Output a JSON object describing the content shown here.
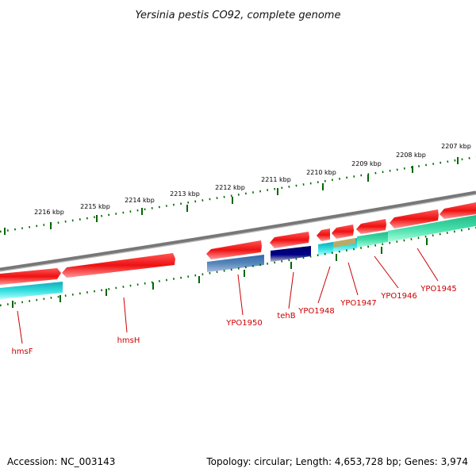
{
  "title": "Yersinia pestis CO92, complete genome",
  "footer": {
    "accession": "Accession: NC_003143",
    "summary": "Topology: circular; Length: 4,653,728 bp; Genes: 3,974"
  },
  "ticks": {
    "outer_labels": [
      "2216 kbp",
      "2215 kbp",
      "2214 kbp",
      "2213 kbp",
      "2212 kbp",
      "2211 kbp",
      "2210 kbp",
      "2209 kbp",
      "2208 kbp",
      "2207 kbp"
    ]
  },
  "genes": [
    {
      "name": "hmsF"
    },
    {
      "name": "hmsH"
    },
    {
      "name": "YPO1950"
    },
    {
      "name": "tehB"
    },
    {
      "name": "YPO1948"
    },
    {
      "name": "YPO1947"
    },
    {
      "name": "YPO1946"
    },
    {
      "name": "YPO1945"
    }
  ],
  "colors": {
    "backbone": "#8a8a8a",
    "gene_arrow": "#ee1111",
    "cds_cyan": "#33dddd",
    "cds_green": "#33dd99",
    "cds_steel": "#4477aa",
    "cds_navy": "#000077",
    "cds_tan": "#bbaa66",
    "tick": "#006600",
    "label": "#cc0000"
  }
}
